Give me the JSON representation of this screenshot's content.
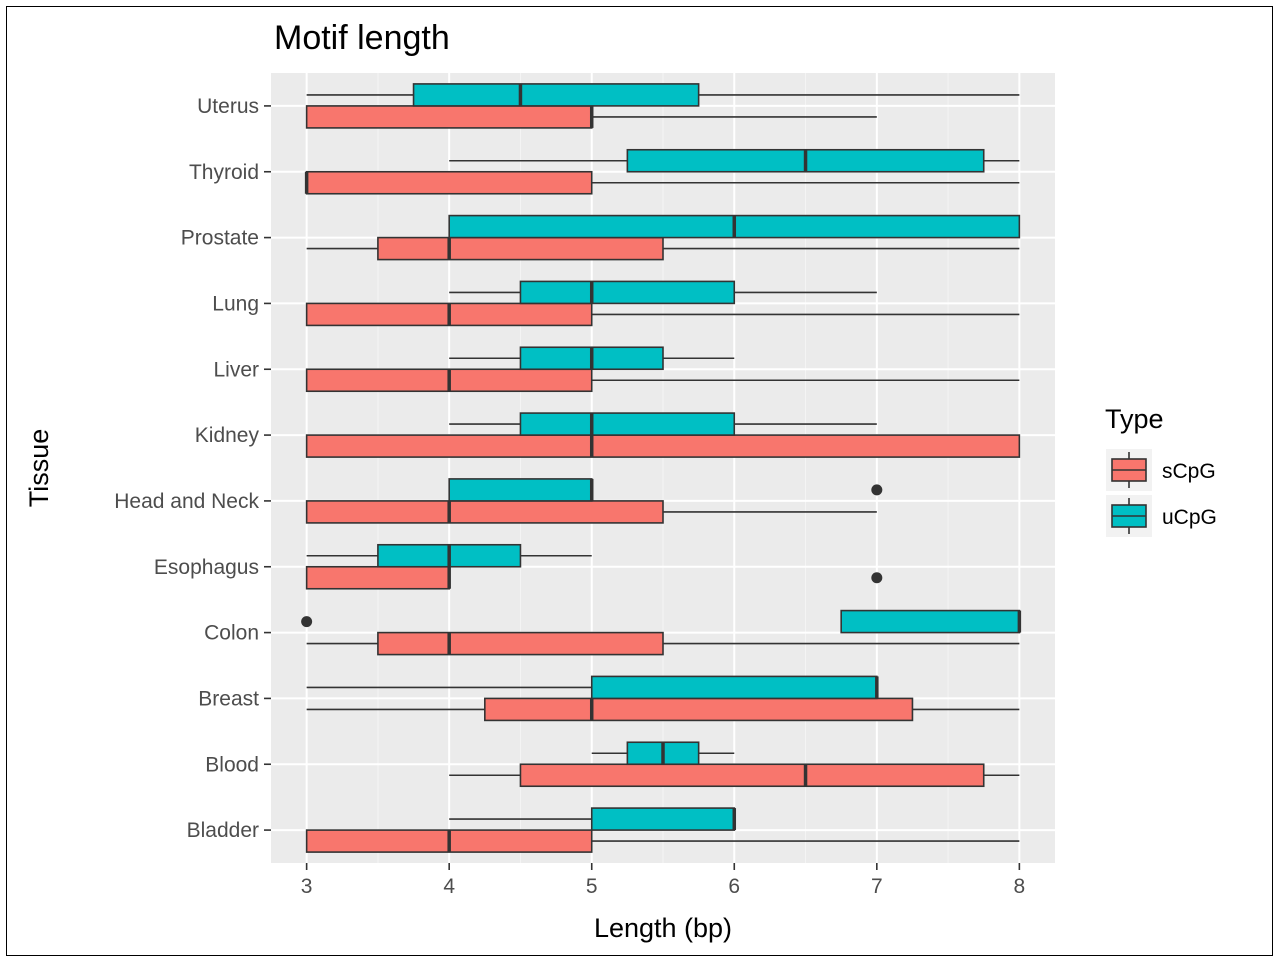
{
  "chart_data": {
    "type": "boxplot",
    "orientation": "horizontal",
    "title": "Motif length",
    "xlabel": "Length (bp)",
    "ylabel": "Tissue",
    "xlim": [
      2.75,
      8.25
    ],
    "xticks": [
      3,
      4,
      5,
      6,
      7,
      8
    ],
    "grid": true,
    "legend": {
      "title": "Type",
      "position": "right"
    },
    "categories": [
      "Uterus",
      "Thyroid",
      "Prostate",
      "Lung",
      "Liver",
      "Kidney",
      "Head and Neck",
      "Esophagus",
      "Colon",
      "Breast",
      "Blood",
      "Bladder"
    ],
    "series": [
      {
        "name": "sCpG",
        "color": "#F8766D",
        "boxes": [
          {
            "tissue": "Uterus",
            "min": 3,
            "q1": 3,
            "median": 5,
            "q3": 5,
            "max": 7,
            "outliers": []
          },
          {
            "tissue": "Thyroid",
            "min": 3,
            "q1": 3,
            "median": 3,
            "q3": 5,
            "max": 8,
            "outliers": []
          },
          {
            "tissue": "Prostate",
            "min": 3,
            "q1": 3.5,
            "median": 4,
            "q3": 5.5,
            "max": 8,
            "outliers": []
          },
          {
            "tissue": "Lung",
            "min": 3,
            "q1": 3,
            "median": 4,
            "q3": 5,
            "max": 8,
            "outliers": []
          },
          {
            "tissue": "Liver",
            "min": 3,
            "q1": 3,
            "median": 4,
            "q3": 5,
            "max": 8,
            "outliers": []
          },
          {
            "tissue": "Kidney",
            "min": 3,
            "q1": 3,
            "median": 5,
            "q3": 8,
            "max": 8,
            "outliers": []
          },
          {
            "tissue": "Head and Neck",
            "min": 3,
            "q1": 3,
            "median": 4,
            "q3": 5.5,
            "max": 7,
            "outliers": []
          },
          {
            "tissue": "Esophagus",
            "min": 3,
            "q1": 3,
            "median": 4,
            "q3": 4,
            "max": 4,
            "outliers": [
              7
            ]
          },
          {
            "tissue": "Colon",
            "min": 3,
            "q1": 3.5,
            "median": 4,
            "q3": 5.5,
            "max": 8,
            "outliers": []
          },
          {
            "tissue": "Breast",
            "min": 3,
            "q1": 4.25,
            "median": 5,
            "q3": 7.25,
            "max": 8,
            "outliers": []
          },
          {
            "tissue": "Blood",
            "min": 4,
            "q1": 4.5,
            "median": 6.5,
            "q3": 7.75,
            "max": 8,
            "outliers": []
          },
          {
            "tissue": "Bladder",
            "min": 3,
            "q1": 3,
            "median": 4,
            "q3": 5,
            "max": 8,
            "outliers": []
          }
        ]
      },
      {
        "name": "uCpG",
        "color": "#00BFC4",
        "boxes": [
          {
            "tissue": "Uterus",
            "min": 3,
            "q1": 3.75,
            "median": 4.5,
            "q3": 5.75,
            "max": 8,
            "outliers": []
          },
          {
            "tissue": "Thyroid",
            "min": 4,
            "q1": 5.25,
            "median": 6.5,
            "q3": 7.75,
            "max": 8,
            "outliers": []
          },
          {
            "tissue": "Prostate",
            "min": 4,
            "q1": 4,
            "median": 6,
            "q3": 8,
            "max": 8,
            "outliers": []
          },
          {
            "tissue": "Lung",
            "min": 4,
            "q1": 4.5,
            "median": 5,
            "q3": 6,
            "max": 7,
            "outliers": []
          },
          {
            "tissue": "Liver",
            "min": 4,
            "q1": 4.5,
            "median": 5,
            "q3": 5.5,
            "max": 6,
            "outliers": []
          },
          {
            "tissue": "Kidney",
            "min": 4,
            "q1": 4.5,
            "median": 5,
            "q3": 6,
            "max": 7,
            "outliers": []
          },
          {
            "tissue": "Head and Neck",
            "min": 4,
            "q1": 4,
            "median": 5,
            "q3": 5,
            "max": 5,
            "outliers": [
              7
            ]
          },
          {
            "tissue": "Esophagus",
            "min": 3,
            "q1": 3.5,
            "median": 4,
            "q3": 4.5,
            "max": 5,
            "outliers": []
          },
          {
            "tissue": "Colon",
            "min": 6.75,
            "q1": 6.75,
            "median": 8,
            "q3": 8,
            "max": 8,
            "outliers": [
              3
            ]
          },
          {
            "tissue": "Breast",
            "min": 3,
            "q1": 5,
            "median": 7,
            "q3": 7,
            "max": 7,
            "outliers": []
          },
          {
            "tissue": "Blood",
            "min": 5,
            "q1": 5.25,
            "median": 5.5,
            "q3": 5.75,
            "max": 6,
            "outliers": []
          },
          {
            "tissue": "Bladder",
            "min": 4,
            "q1": 5,
            "median": 6,
            "q3": 6,
            "max": 6,
            "outliers": []
          }
        ]
      }
    ]
  }
}
